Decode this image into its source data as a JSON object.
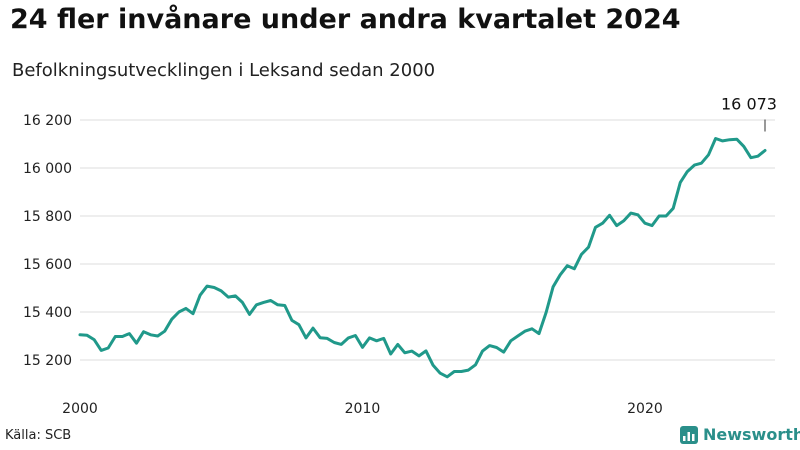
{
  "header": {
    "title": "24 fler invånare under andra kvartalet 2024",
    "subtitle": "Befolkningsutvecklingen i Leksand sedan 2000"
  },
  "footer": {
    "source": "Källa: SCB",
    "brand": "Newsworthy"
  },
  "colors": {
    "line": "#20998a",
    "grid": "#dddddd",
    "brand": "#2a8f8a"
  },
  "chart_data": {
    "type": "line",
    "title": "24 fler invånare under andra kvartalet 2024",
    "subtitle": "Befolkningsutvecklingen i Leksand sedan 2000",
    "xlabel": "",
    "ylabel": "",
    "xlim": [
      2000.0,
      2024.25
    ],
    "ylim": [
      15100,
      16220
    ],
    "x_ticks": [
      2000,
      2010,
      2020
    ],
    "x_tick_labels": [
      "2000",
      "2010",
      "2020"
    ],
    "y_ticks": [
      15200,
      15400,
      15600,
      15800,
      16000,
      16200
    ],
    "y_tick_labels": [
      "15 200",
      "15 400",
      "15 600",
      "15 800",
      "16 000",
      "16 200"
    ],
    "grid": "horizontal",
    "annotation": {
      "text": "16 073",
      "x": 2024.25,
      "y": 16073
    },
    "series": [
      {
        "values": [
          [
            2000.0,
            15305
          ],
          [
            2000.25,
            15303
          ],
          [
            2000.5,
            15285
          ],
          [
            2000.75,
            15240
          ],
          [
            2001.0,
            15250
          ],
          [
            2001.25,
            15298
          ],
          [
            2001.5,
            15298
          ],
          [
            2001.75,
            15310
          ],
          [
            2002.0,
            15270
          ],
          [
            2002.25,
            15318
          ],
          [
            2002.5,
            15305
          ],
          [
            2002.75,
            15300
          ],
          [
            2003.0,
            15320
          ],
          [
            2003.25,
            15370
          ],
          [
            2003.5,
            15400
          ],
          [
            2003.75,
            15415
          ],
          [
            2004.0,
            15393
          ],
          [
            2004.25,
            15470
          ],
          [
            2004.5,
            15508
          ],
          [
            2004.75,
            15502
          ],
          [
            2005.0,
            15488
          ],
          [
            2005.25,
            15462
          ],
          [
            2005.5,
            15467
          ],
          [
            2005.75,
            15440
          ],
          [
            2006.0,
            15390
          ],
          [
            2006.25,
            15430
          ],
          [
            2006.5,
            15440
          ],
          [
            2006.75,
            15448
          ],
          [
            2007.0,
            15430
          ],
          [
            2007.25,
            15427
          ],
          [
            2007.5,
            15365
          ],
          [
            2007.75,
            15347
          ],
          [
            2008.0,
            15292
          ],
          [
            2008.25,
            15333
          ],
          [
            2008.5,
            15293
          ],
          [
            2008.75,
            15290
          ],
          [
            2009.0,
            15273
          ],
          [
            2009.25,
            15265
          ],
          [
            2009.5,
            15292
          ],
          [
            2009.75,
            15302
          ],
          [
            2010.0,
            15253
          ],
          [
            2010.25,
            15292
          ],
          [
            2010.5,
            15280
          ],
          [
            2010.75,
            15290
          ],
          [
            2011.0,
            15225
          ],
          [
            2011.25,
            15265
          ],
          [
            2011.5,
            15230
          ],
          [
            2011.75,
            15237
          ],
          [
            2012.0,
            15217
          ],
          [
            2012.25,
            15238
          ],
          [
            2012.5,
            15178
          ],
          [
            2012.75,
            15145
          ],
          [
            2013.0,
            15130
          ],
          [
            2013.25,
            15152
          ],
          [
            2013.5,
            15152
          ],
          [
            2013.75,
            15158
          ],
          [
            2014.0,
            15180
          ],
          [
            2014.25,
            15237
          ],
          [
            2014.5,
            15260
          ],
          [
            2014.75,
            15252
          ],
          [
            2015.0,
            15233
          ],
          [
            2015.25,
            15280
          ],
          [
            2015.5,
            15300
          ],
          [
            2015.75,
            15320
          ],
          [
            2016.0,
            15330
          ],
          [
            2016.25,
            15310
          ],
          [
            2016.5,
            15398
          ],
          [
            2016.75,
            15505
          ],
          [
            2017.0,
            15555
          ],
          [
            2017.25,
            15593
          ],
          [
            2017.5,
            15580
          ],
          [
            2017.75,
            15640
          ],
          [
            2018.0,
            15670
          ],
          [
            2018.25,
            15753
          ],
          [
            2018.5,
            15770
          ],
          [
            2018.75,
            15803
          ],
          [
            2019.0,
            15760
          ],
          [
            2019.25,
            15780
          ],
          [
            2019.5,
            15812
          ],
          [
            2019.75,
            15805
          ],
          [
            2020.0,
            15770
          ],
          [
            2020.25,
            15760
          ],
          [
            2020.5,
            15800
          ],
          [
            2020.75,
            15800
          ],
          [
            2021.0,
            15832
          ],
          [
            2021.25,
            15940
          ],
          [
            2021.5,
            15985
          ],
          [
            2021.75,
            16012
          ],
          [
            2022.0,
            16020
          ],
          [
            2022.25,
            16055
          ],
          [
            2022.5,
            16123
          ],
          [
            2022.75,
            16113
          ],
          [
            2023.0,
            16118
          ],
          [
            2023.25,
            16120
          ],
          [
            2023.5,
            16090
          ],
          [
            2023.75,
            16043
          ],
          [
            2024.0,
            16049
          ],
          [
            2024.25,
            16073
          ]
        ]
      }
    ]
  }
}
